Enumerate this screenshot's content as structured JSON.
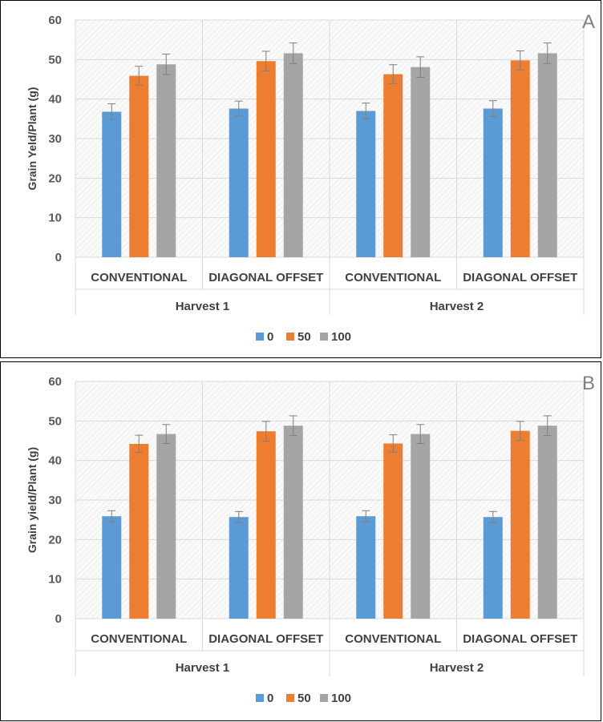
{
  "colors": {
    "series": [
      "#5B9BD5",
      "#ED7D31",
      "#A5A5A5"
    ],
    "grid": "#D9D9D9",
    "error_bar": "#7F7F7F"
  },
  "chart_data": [
    {
      "type": "bar",
      "panel_label": "A",
      "ylabel": "Grain Yeld/Plant (g)",
      "ylim": [
        0,
        60
      ],
      "yticks": [
        0,
        10,
        20,
        30,
        40,
        50,
        60
      ],
      "grid": true,
      "legend_position": "bottom",
      "groups": [
        "Harvest 1",
        "Harvest 2"
      ],
      "categories": [
        "CONVENTIONAL",
        "DIAGONAL OFFSET",
        "CONVENTIONAL",
        "DIAGONAL OFFSET"
      ],
      "series": [
        {
          "name": "0",
          "values": [
            36.8,
            37.6,
            37.0,
            37.6
          ],
          "errors": [
            2.0,
            1.9,
            2.0,
            2.0
          ]
        },
        {
          "name": "50",
          "values": [
            45.9,
            49.6,
            46.3,
            49.8
          ],
          "errors": [
            2.4,
            2.5,
            2.4,
            2.4
          ]
        },
        {
          "name": "100",
          "values": [
            48.8,
            51.6,
            48.1,
            51.6
          ],
          "errors": [
            2.6,
            2.6,
            2.6,
            2.6
          ]
        }
      ]
    },
    {
      "type": "bar",
      "panel_label": "B",
      "ylabel": "Grain yield/Plant (g)",
      "ylim": [
        0,
        60
      ],
      "yticks": [
        0,
        10,
        20,
        30,
        40,
        50,
        60
      ],
      "grid": true,
      "legend_position": "bottom",
      "groups": [
        "Harvest 1",
        "Harvest 2"
      ],
      "categories": [
        "CONVENTIONAL",
        "DIAGONAL OFFSET",
        "CONVENTIONAL",
        "DIAGONAL OFFSET"
      ],
      "series": [
        {
          "name": "0",
          "values": [
            25.9,
            25.7,
            25.9,
            25.7
          ],
          "errors": [
            1.4,
            1.4,
            1.4,
            1.4
          ]
        },
        {
          "name": "50",
          "values": [
            44.2,
            47.4,
            44.3,
            47.5
          ],
          "errors": [
            2.2,
            2.5,
            2.2,
            2.4
          ]
        },
        {
          "name": "100",
          "values": [
            46.7,
            48.8,
            46.7,
            48.8
          ],
          "errors": [
            2.4,
            2.5,
            2.4,
            2.5
          ]
        }
      ]
    }
  ]
}
